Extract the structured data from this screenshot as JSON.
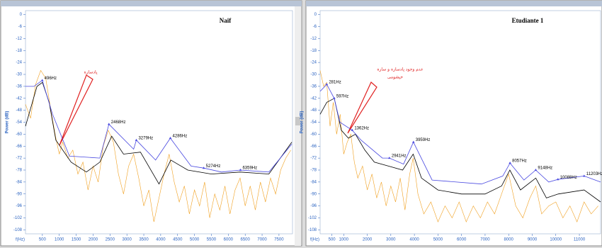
{
  "chart_data": [
    {
      "type": "line",
      "title": "Naif",
      "xlabel": "f(Hz)",
      "ylabel": "Power (dB)",
      "xlim": [
        0,
        7900
      ],
      "ylim": [
        -110,
        2
      ],
      "xticks": [
        500,
        1000,
        1500,
        2000,
        2500,
        3000,
        3500,
        4000,
        4500,
        5000,
        5500,
        6000,
        6500,
        7000,
        7500
      ],
      "yticks": [
        0,
        -6,
        -12,
        -18,
        -24,
        -30,
        -36,
        -42,
        -48,
        -54,
        -60,
        -66,
        -72,
        -78,
        -84,
        -90,
        -96,
        -102,
        -108
      ],
      "series": [
        {
          "color": "#f0a020",
          "x": [
            0,
            150,
            300,
            450,
            600,
            750,
            900,
            1000,
            1100,
            1250,
            1400,
            1550,
            1700,
            1850,
            2000,
            2150,
            2300,
            2450,
            2600,
            2750,
            2900,
            3050,
            3200,
            3350,
            3500,
            3650,
            3800,
            3950,
            4100,
            4250,
            4400,
            4550,
            4700,
            4850,
            5000,
            5150,
            5300,
            5450,
            5600,
            5750,
            5900,
            6050,
            6200,
            6350,
            6500,
            6650,
            6800,
            6950,
            7100,
            7250,
            7400,
            7550,
            7700,
            7850
          ],
          "values": [
            -45,
            -52,
            -35,
            -28,
            -32,
            -48,
            -62,
            -70,
            -64,
            -72,
            -68,
            -80,
            -74,
            -88,
            -76,
            -84,
            -66,
            -58,
            -64,
            -80,
            -90,
            -76,
            -70,
            -82,
            -96,
            -88,
            -104,
            -92,
            -80,
            -70,
            -84,
            -94,
            -86,
            -100,
            -88,
            -96,
            -84,
            -102,
            -90,
            -98,
            -86,
            -100,
            -88,
            -82,
            -96,
            -86,
            -98,
            -84,
            -94,
            -82,
            -90,
            -78,
            -72,
            -68
          ]
        },
        {
          "color": "#000000",
          "x": [
            0,
            340,
            500,
            700,
            900,
            1350,
            1800,
            2200,
            2550,
            2900,
            3400,
            3950,
            4300,
            4800,
            5500,
            6350,
            7200,
            7880
          ],
          "values": [
            -56,
            -36,
            -34,
            -44,
            -63,
            -74,
            -79,
            -74,
            -61,
            -70,
            -69,
            -85,
            -73,
            -78,
            -80,
            -79,
            -80,
            -64
          ]
        },
        {
          "color": "#4848e0",
          "x": [
            0,
            250,
            496,
            800,
            1300,
            2200,
            2468,
            3200,
            3279,
            3850,
            4286,
            4900,
            5274,
            5800,
            6359,
            7200,
            7880
          ],
          "values": [
            -36,
            -36,
            -33,
            -50,
            -71,
            -72,
            -55,
            -67.5,
            -63,
            -73,
            -62,
            -76,
            -77,
            -79,
            -78,
            -79,
            -65
          ]
        }
      ],
      "peaks": [
        {
          "x": 496,
          "y": -33,
          "label": "496Hz"
        },
        {
          "x": 2468,
          "y": -55,
          "label": "2468Hz"
        },
        {
          "x": 3279,
          "y": -63,
          "label": "3279Hz"
        },
        {
          "x": 4286,
          "y": -62,
          "label": "4286Hz"
        },
        {
          "x": 5274,
          "y": -77,
          "label": "5274Hz"
        },
        {
          "x": 6359,
          "y": -78,
          "label": "6359Hz"
        }
      ],
      "annotations": [
        "پادسازه"
      ]
    },
    {
      "type": "line",
      "title": "Etudiante 1",
      "xlabel": "f(Hz)",
      "ylabel": "Power (dB)",
      "xlim": [
        0,
        11900
      ],
      "ylim": [
        -110,
        2
      ],
      "xticks": [
        500,
        1000,
        2000,
        3000,
        4000,
        5000,
        6000,
        7000,
        8000,
        9000,
        10000,
        11000
      ],
      "yticks": [
        0,
        -6,
        -12,
        -18,
        -24,
        -30,
        -36,
        -42,
        -48,
        -54,
        -60,
        -66,
        -72,
        -78,
        -84,
        -90,
        -96,
        -102,
        -108
      ],
      "series": [
        {
          "color": "#f0a020",
          "x": [
            0,
            150,
            280,
            420,
            560,
            700,
            850,
            1000,
            1150,
            1300,
            1450,
            1600,
            1800,
            2000,
            2200,
            2400,
            2600,
            2800,
            3000,
            3200,
            3400,
            3600,
            3800,
            3950,
            4150,
            4400,
            4700,
            5000,
            5300,
            5600,
            5900,
            6200,
            6500,
            6800,
            7100,
            7400,
            7700,
            8000,
            8300,
            8600,
            8900,
            9150,
            9400,
            9700,
            10000,
            10300,
            10600,
            10900,
            11200,
            11500,
            11800
          ],
          "values": [
            -28,
            -36,
            -34,
            -56,
            -44,
            -60,
            -50,
            -70,
            -64,
            -60,
            -74,
            -82,
            -76,
            -88,
            -80,
            -92,
            -84,
            -96,
            -86,
            -94,
            -82,
            -98,
            -80,
            -72,
            -90,
            -100,
            -94,
            -104,
            -96,
            -102,
            -94,
            -104,
            -96,
            -102,
            -94,
            -100,
            -90,
            -80,
            -96,
            -102,
            -92,
            -86,
            -100,
            -96,
            -94,
            -102,
            -96,
            -104,
            -94,
            -100,
            -96
          ]
        },
        {
          "color": "#000000",
          "x": [
            0,
            281,
            600,
            900,
            1200,
            1500,
            1900,
            2300,
            2900,
            3500,
            3950,
            4300,
            5000,
            6000,
            7000,
            7700,
            8050,
            8500,
            9150,
            9600,
            10100,
            11200,
            11900
          ],
          "values": [
            -50,
            -44,
            -42,
            -58,
            -62,
            -60,
            -68,
            -74,
            -76,
            -78,
            -70,
            -82,
            -88,
            -90,
            -90,
            -86,
            -78,
            -88,
            -82,
            -92,
            -90,
            -88,
            -94
          ]
        },
        {
          "color": "#4848e0",
          "x": [
            0,
            281,
            597,
            840,
            1362,
            1740,
            2640,
            2941,
            3540,
            3959,
            4750,
            6850,
            7750,
            8057,
            8650,
            9148,
            9700,
            10088,
            11203,
            11900
          ],
          "values": [
            -38.5,
            -35,
            -42,
            -54,
            -58,
            -63,
            -72,
            -72,
            -75,
            -64,
            -83,
            -85,
            -81,
            -74.5,
            -83,
            -78,
            -84,
            -82.7,
            -81,
            -84
          ]
        }
      ],
      "peaks": [
        {
          "x": 281,
          "y": -35,
          "label": "281Hz"
        },
        {
          "x": 597,
          "y": -42,
          "label": "597Hz"
        },
        {
          "x": 1362,
          "y": -58,
          "label": "1362Hz"
        },
        {
          "x": 2941,
          "y": -72,
          "label": "2941Hz"
        },
        {
          "x": 3959,
          "y": -64,
          "label": "3959Hz"
        },
        {
          "x": 8057,
          "y": -74.5,
          "label": "8057Hz"
        },
        {
          "x": 9148,
          "y": -78,
          "label": "9148Hz"
        },
        {
          "x": 10088,
          "y": -82.7,
          "label": "10088Hz"
        },
        {
          "x": 11203,
          "y": -81,
          "label": "11203Hz"
        }
      ],
      "annotations": [
        "عدم وجود پادسازه و سازه",
        "خیشومی"
      ]
    }
  ]
}
